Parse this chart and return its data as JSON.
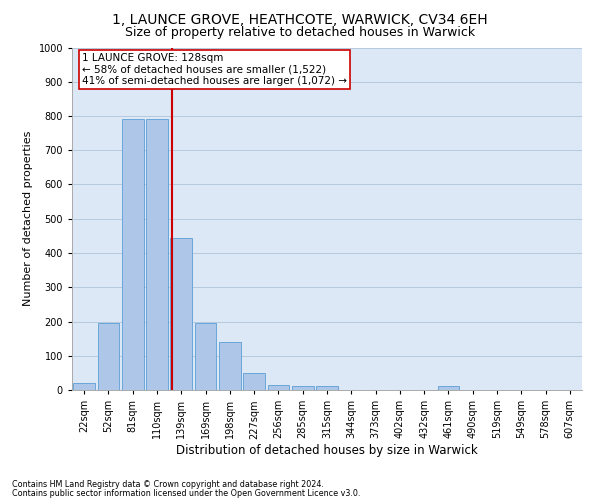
{
  "title1": "1, LAUNCE GROVE, HEATHCOTE, WARWICK, CV34 6EH",
  "title2": "Size of property relative to detached houses in Warwick",
  "xlabel": "Distribution of detached houses by size in Warwick",
  "ylabel": "Number of detached properties",
  "footer1": "Contains HM Land Registry data © Crown copyright and database right 2024.",
  "footer2": "Contains public sector information licensed under the Open Government Licence v3.0.",
  "annotation_line1": "1 LAUNCE GROVE: 128sqm",
  "annotation_line2": "← 58% of detached houses are smaller (1,522)",
  "annotation_line3": "41% of semi-detached houses are larger (1,072) →",
  "bar_labels": [
    "22sqm",
    "52sqm",
    "81sqm",
    "110sqm",
    "139sqm",
    "169sqm",
    "198sqm",
    "227sqm",
    "256sqm",
    "285sqm",
    "315sqm",
    "344sqm",
    "373sqm",
    "402sqm",
    "432sqm",
    "461sqm",
    "490sqm",
    "519sqm",
    "549sqm",
    "578sqm",
    "607sqm"
  ],
  "bar_values": [
    20,
    195,
    790,
    790,
    445,
    195,
    140,
    50,
    15,
    12,
    12,
    0,
    0,
    0,
    0,
    12,
    0,
    0,
    0,
    0,
    0
  ],
  "bar_color": "#aec6e8",
  "bar_edge_color": "#5a9fd4",
  "vline_color": "#cc0000",
  "ylim": [
    0,
    1000
  ],
  "yticks": [
    0,
    100,
    200,
    300,
    400,
    500,
    600,
    700,
    800,
    900,
    1000
  ],
  "background_color": "#ffffff",
  "axes_bg_color": "#dce8f5",
  "grid_color": "#b0c4d8",
  "title_fontsize": 10,
  "subtitle_fontsize": 9,
  "axis_label_fontsize": 8,
  "tick_fontsize": 7,
  "annotation_fontsize": 7.5
}
